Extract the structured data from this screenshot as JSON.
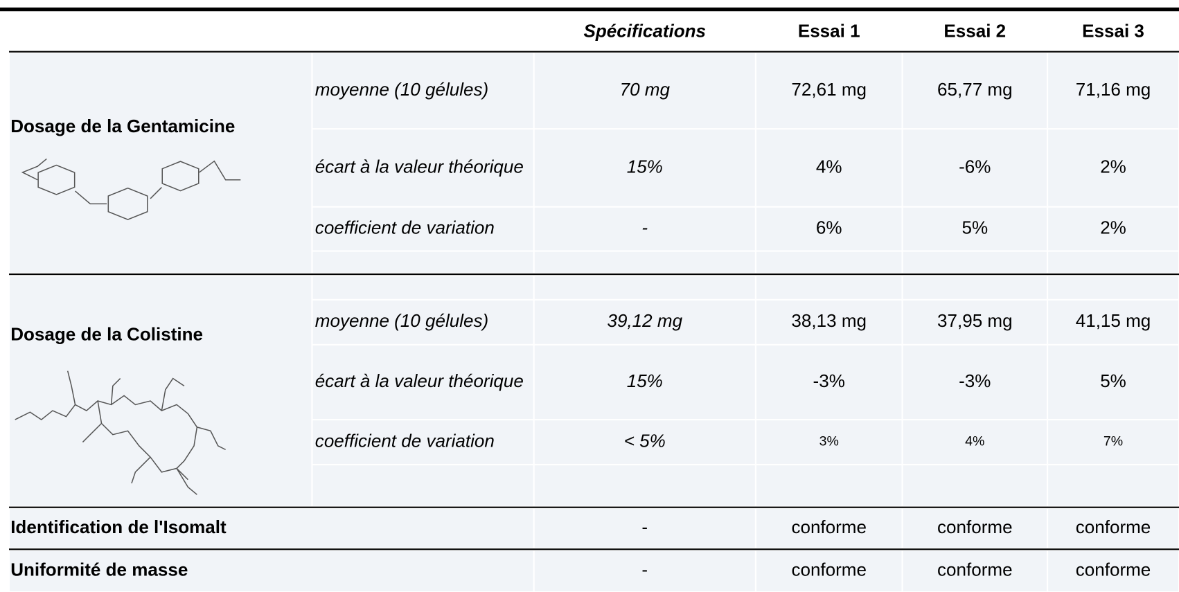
{
  "header": {
    "columns": [
      "Spécifications",
      "Essai 1",
      "Essai 2",
      "Essai 3"
    ]
  },
  "sections": [
    {
      "title": "Dosage de la Gentamicine",
      "rows": [
        {
          "label": "moyenne (10 gélules)",
          "values": [
            "70 mg",
            "72,61 mg",
            "65,77 mg",
            "71,16 mg"
          ]
        },
        {
          "label": "écart à la valeur théorique",
          "values": [
            "15%",
            "4%",
            "-6%",
            "2%"
          ]
        },
        {
          "label": "coefficient de variation",
          "values": [
            "-",
            "6%",
            "5%",
            "2%"
          ]
        }
      ]
    },
    {
      "title": "Dosage de la Colistine",
      "rows": [
        {
          "label": "moyenne (10 gélules)",
          "values": [
            "39,12 mg",
            "38,13 mg",
            "37,95 mg",
            "41,15 mg"
          ]
        },
        {
          "label": "écart à la valeur théorique",
          "values": [
            "15%",
            "-3%",
            "-3%",
            "5%"
          ]
        },
        {
          "label": "coefficient de variation",
          "values": [
            "< 5%",
            "3%",
            "4%",
            "7%"
          ]
        }
      ]
    }
  ],
  "rows": [
    {
      "label": "Identification de l'Isomalt",
      "values": [
        "-",
        "conforme",
        "conforme",
        "conforme"
      ]
    },
    {
      "label": "Uniformité de masse",
      "values": [
        "-",
        "conforme",
        "conforme",
        "conforme"
      ]
    }
  ]
}
